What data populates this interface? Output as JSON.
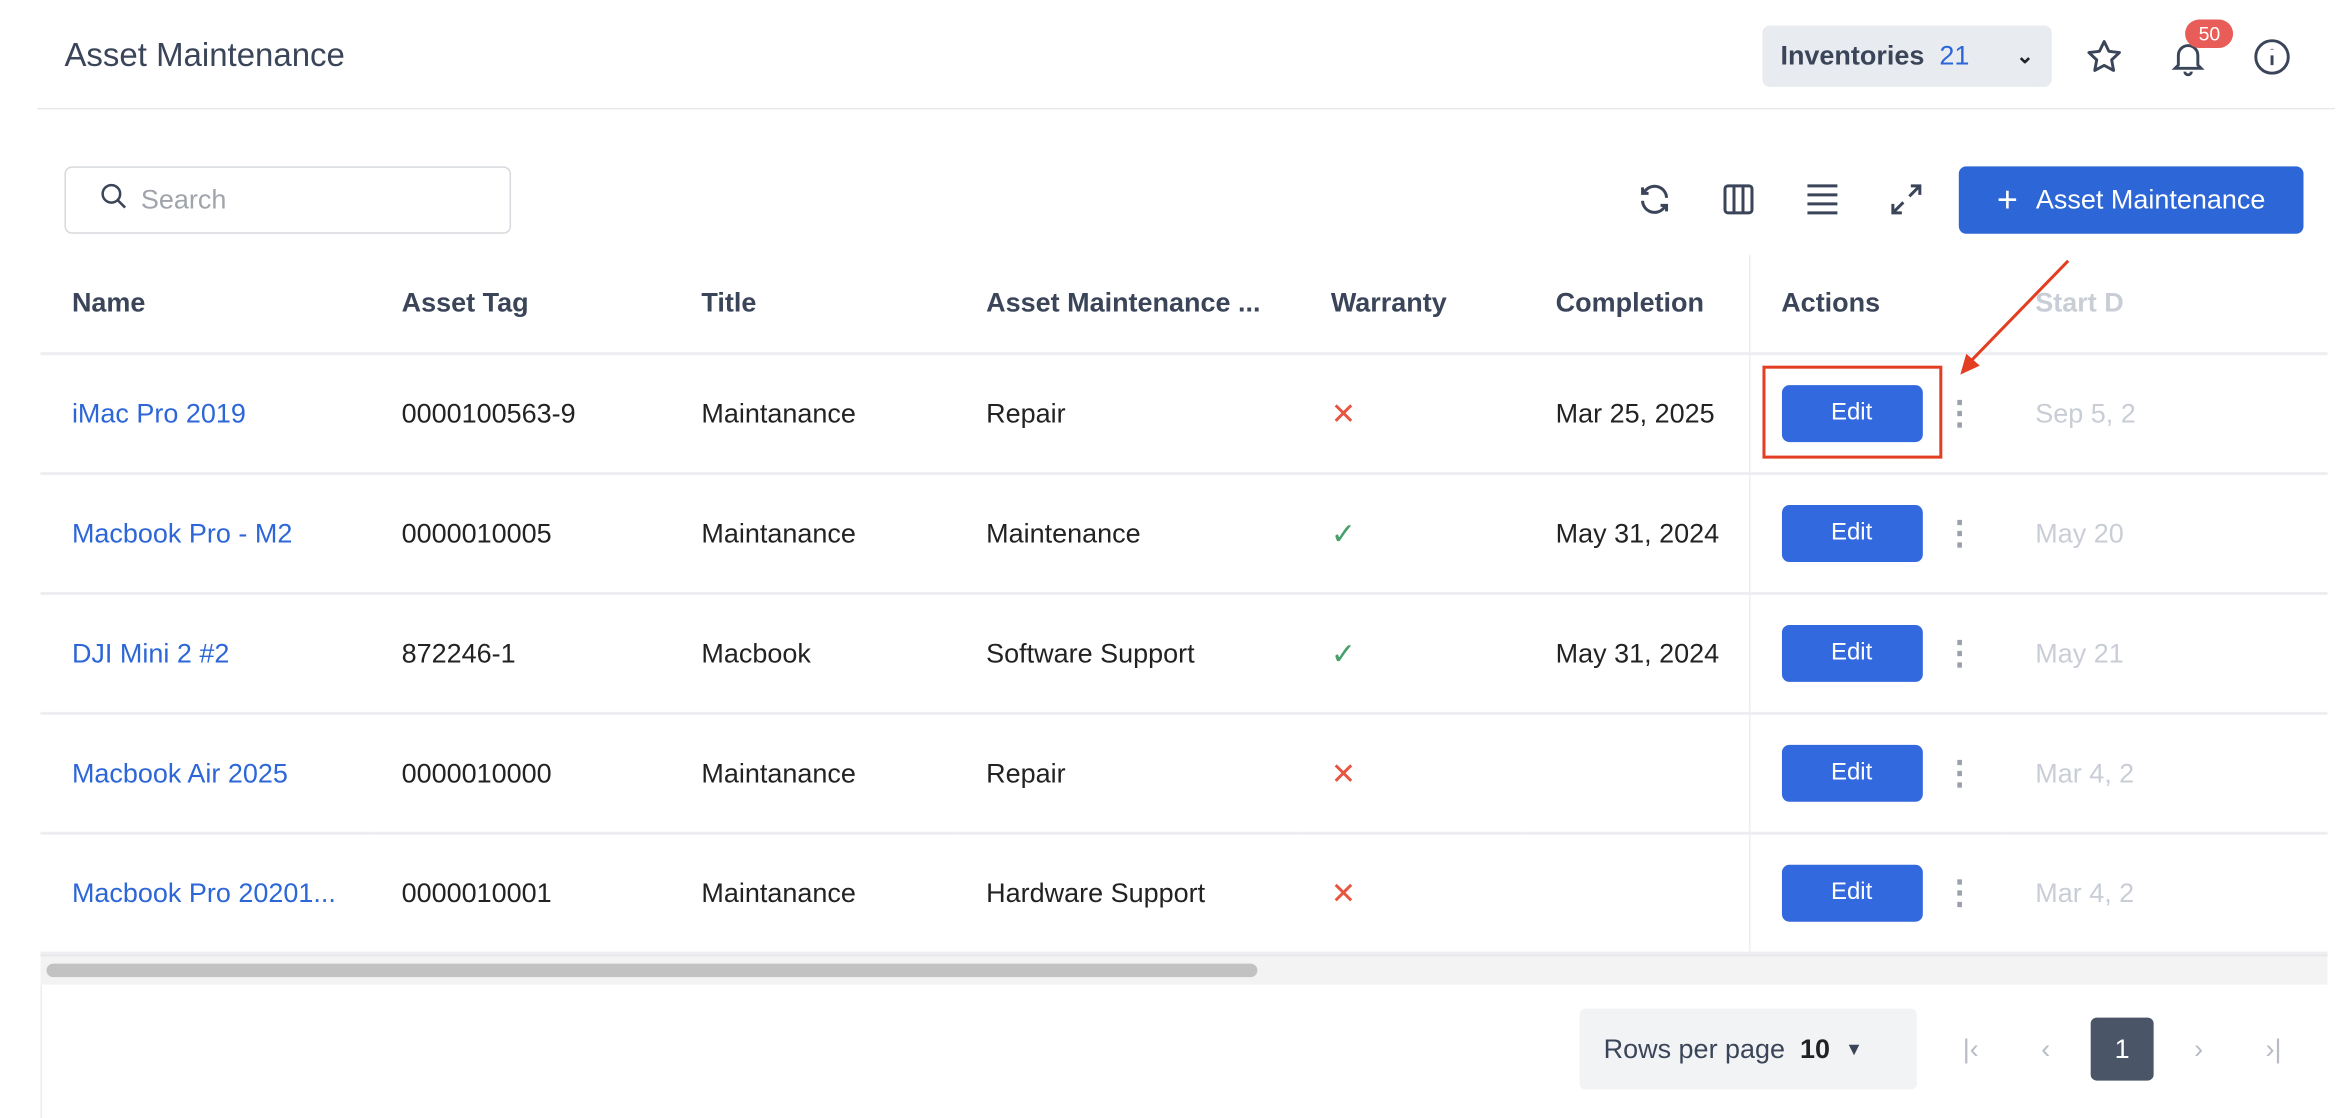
{
  "header": {
    "title": "Asset Maintenance",
    "inventories_label": "Inventories",
    "inventories_count": "21",
    "notification_count": "50"
  },
  "toolbar": {
    "search_placeholder": "Search",
    "add_label": "Asset Maintenance"
  },
  "table": {
    "columns": [
      "Name",
      "Asset Tag",
      "Title",
      "Asset Maintenance ...",
      "Warranty",
      "Completion",
      "Actions",
      "Start D"
    ],
    "edit_label": "Edit",
    "rows": [
      {
        "name": "iMac Pro 2019",
        "tag": "0000100563-9",
        "title": "Maintanance",
        "type": "Repair",
        "warranty": "✕",
        "completion": "Mar 25, 2025",
        "start": "Sep 5, 2"
      },
      {
        "name": "Macbook Pro - M2",
        "tag": "0000010005",
        "title": "Maintanance",
        "type": "Maintenance",
        "warranty": "✓",
        "completion": "May 31, 2024",
        "start": "May 20"
      },
      {
        "name": "DJI Mini 2 #2",
        "tag": "872246-1",
        "title": "Macbook",
        "type": "Software Support",
        "warranty": "✓",
        "completion": "May 31, 2024",
        "start": "May 21"
      },
      {
        "name": "Macbook Air 2025",
        "tag": "0000010000",
        "title": "Maintanance",
        "type": "Repair",
        "warranty": "✕",
        "completion": "",
        "start": "Mar 4, 2"
      },
      {
        "name": "Macbook Pro 20201...",
        "tag": "0000010001",
        "title": "Maintanance",
        "type": "Hardware Support",
        "warranty": "✕",
        "completion": "",
        "start": "Mar 4, 2"
      }
    ]
  },
  "pagination": {
    "rows_per_page_label": "Rows per page",
    "rows_per_page": "10",
    "current_page": "1"
  },
  "colors": {
    "primary": "#2d66d6",
    "highlight": "#e33d22",
    "badge": "#e85d57"
  }
}
